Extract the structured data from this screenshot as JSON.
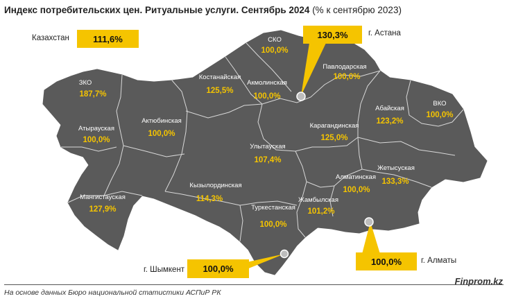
{
  "title_bold": "Индекс потребительских цен. Ритуальные услуги. Сентябрь 2024",
  "title_rest": " (% к сентябрю 2023)",
  "country": {
    "label": "Казахстан",
    "value": "111,6%"
  },
  "cities": [
    {
      "name": "г. Астана",
      "value": "130,3%"
    },
    {
      "name": "г. Шымкент",
      "value": "100,0%"
    },
    {
      "name": "г. Алматы",
      "value": "100,0%"
    }
  ],
  "regions": [
    {
      "name": "СКО",
      "value": "100,0%"
    },
    {
      "name": "Павлодарская",
      "value": "100,0%"
    },
    {
      "name": "Костанайская",
      "value": "125,5%"
    },
    {
      "name": "Акмолинская",
      "value": "100,0%"
    },
    {
      "name": "ЗКО",
      "value": "187,7%"
    },
    {
      "name": "Актюбинская",
      "value": "100,0%"
    },
    {
      "name": "Атырауская",
      "value": "100,0%"
    },
    {
      "name": "Карагандинская",
      "value": "125,0%"
    },
    {
      "name": "Абайская",
      "value": "123,2%"
    },
    {
      "name": "ВКО",
      "value": "100,0%"
    },
    {
      "name": "Улытауская",
      "value": "107,4%"
    },
    {
      "name": "Жетысуская",
      "value": "133,3%"
    },
    {
      "name": "Алматинская",
      "value": "100,0%"
    },
    {
      "name": "Кызылординская",
      "value": "114,3%"
    },
    {
      "name": "Мангистауская",
      "value": "127,9%"
    },
    {
      "name": "Жамбылская",
      "value": "101,2%"
    },
    {
      "name": "Туркестанская",
      "value": "100,0%"
    }
  ],
  "source": "На основе данных Бюро национальной статистики АСПиР РК",
  "brand": "Finprom.kz",
  "colors": {
    "map_fill": "#5a5a5a",
    "border": "#d9d9d9",
    "accent": "#f5c400"
  }
}
